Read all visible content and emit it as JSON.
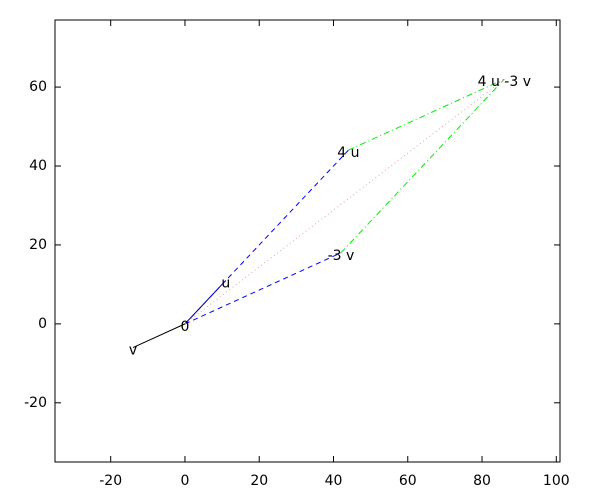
{
  "chart_data": {
    "type": "vector",
    "xlim": [
      -35,
      101
    ],
    "ylim": [
      -35,
      77
    ],
    "xticks": [
      -20,
      0,
      20,
      40,
      60,
      80,
      100
    ],
    "yticks": [
      -20,
      0,
      20,
      40,
      60
    ],
    "vectors": [
      {
        "x": [
          0,
          11
        ],
        "y": [
          0,
          11
        ],
        "color": "#000080",
        "style": "solid"
      },
      {
        "x": [
          0,
          -14
        ],
        "y": [
          0,
          -6
        ],
        "color": "#000000",
        "style": "solid"
      },
      {
        "x": [
          0,
          44
        ],
        "y": [
          0,
          44
        ],
        "color": "#0000ff",
        "style": "dashed"
      },
      {
        "x": [
          0,
          42
        ],
        "y": [
          0,
          18
        ],
        "color": "#0000ff",
        "style": "dashed"
      },
      {
        "x": [
          44,
          86
        ],
        "y": [
          44,
          62
        ],
        "color": "#00ee00",
        "style": "dashdot"
      },
      {
        "x": [
          42,
          86
        ],
        "y": [
          18,
          62
        ],
        "color": "#00ee00",
        "style": "dashdot"
      },
      {
        "x": [
          0,
          86
        ],
        "y": [
          0,
          62
        ],
        "color": "#e0a0c0",
        "style": "dotted"
      }
    ],
    "points": [
      {
        "label": "0",
        "x": 0,
        "y": 0
      },
      {
        "label": "u",
        "x": 11,
        "y": 11
      },
      {
        "label": "v",
        "x": -14,
        "y": -6
      },
      {
        "label": "4 u",
        "x": 44,
        "y": 44
      },
      {
        "label": "-3 v",
        "x": 42,
        "y": 18
      },
      {
        "label": "4 u -3 v",
        "x": 86,
        "y": 62
      }
    ]
  }
}
